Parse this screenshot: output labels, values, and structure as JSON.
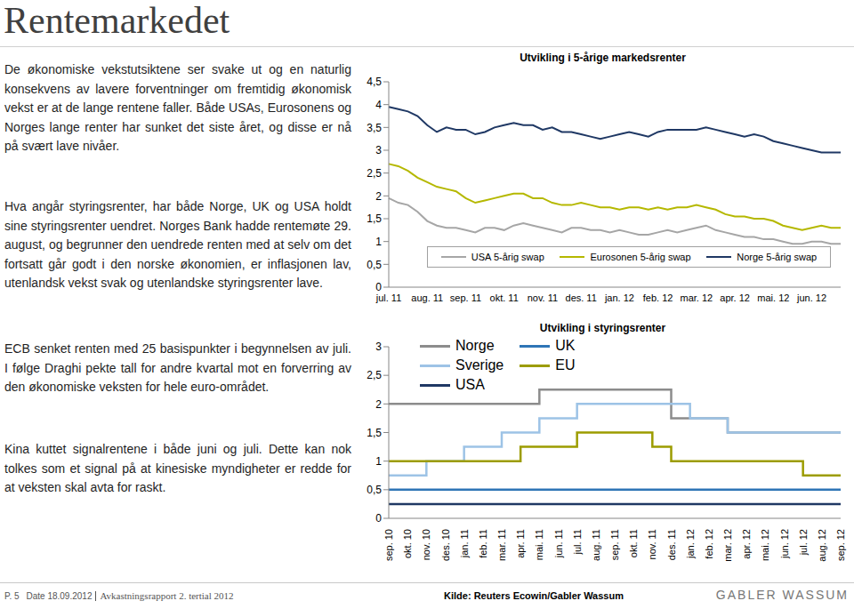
{
  "title": "Rentemarkedet",
  "paragraphs": [
    "De økonomiske vekstutsiktene ser svake ut og en naturlig konsekvens av lavere forventninger om fremtidig økonomisk vekst er at de lange rentene faller. Både USAs, Eurosonens og Norges lange renter har sunket det siste året, og disse er nå på svært lave nivåer.",
    "Hva angår styringsrenter, har både Norge, UK og USA holdt sine styringsrenter uendret. Norges Bank hadde rentemøte 29. august, og begrunner den uendrede renten med at selv om det fortsatt går godt i den norske økonomien, er inflasjonen lav, utenlandsk vekst svak og utenlandske styringsrenter lave.",
    "ECB senket renten med 25 basispunkter i begynnelsen av juli. I følge Draghi pekte tall for andre kvartal mot en forverring av den økonomiske veksten for hele euro-området.",
    "Kina kuttet signalrentene i både juni og juli. Dette kan nok tolkes som et signal på at kinesiske myndigheter er redde for at veksten skal avta for raskt."
  ],
  "chart_data": [
    {
      "type": "line",
      "title": "Utvikling i 5-årige markedsrenter",
      "categories": [
        "jul. 11",
        null,
        null,
        null,
        "aug. 11",
        null,
        null,
        null,
        "sep. 11",
        null,
        null,
        null,
        "okt. 11",
        null,
        null,
        null,
        "nov. 11",
        null,
        null,
        null,
        "des. 11",
        null,
        null,
        null,
        "jan. 12",
        null,
        null,
        null,
        "feb. 12",
        null,
        null,
        null,
        "mar. 12",
        null,
        null,
        null,
        "apr. 12",
        null,
        null,
        null,
        "mai. 12",
        null,
        null,
        null,
        "jun. 12",
        null,
        null,
        null
      ],
      "series": [
        {
          "name": "USA 5-årig swap",
          "color": "#a6a6a6",
          "values": [
            1.95,
            1.85,
            1.8,
            1.65,
            1.45,
            1.35,
            1.3,
            1.3,
            1.25,
            1.2,
            1.3,
            1.3,
            1.25,
            1.35,
            1.4,
            1.35,
            1.3,
            1.25,
            1.2,
            1.3,
            1.3,
            1.25,
            1.25,
            1.2,
            1.25,
            1.2,
            1.15,
            1.15,
            1.2,
            1.25,
            1.2,
            1.25,
            1.3,
            1.35,
            1.25,
            1.2,
            1.15,
            1.1,
            1.1,
            1.05,
            1.05,
            1.0,
            0.95,
            0.95,
            1.0,
            1.0,
            0.95,
            0.95
          ]
        },
        {
          "name": "Eurosonen 5-årig swap",
          "color": "#b5b800",
          "values": [
            2.7,
            2.65,
            2.55,
            2.4,
            2.3,
            2.2,
            2.15,
            2.1,
            1.95,
            1.85,
            1.9,
            1.95,
            2.0,
            2.05,
            2.05,
            1.95,
            1.95,
            1.85,
            1.8,
            1.8,
            1.85,
            1.8,
            1.75,
            1.75,
            1.7,
            1.75,
            1.75,
            1.7,
            1.75,
            1.7,
            1.75,
            1.75,
            1.8,
            1.75,
            1.7,
            1.6,
            1.55,
            1.55,
            1.5,
            1.5,
            1.45,
            1.35,
            1.3,
            1.25,
            1.3,
            1.35,
            1.3,
            1.3
          ]
        },
        {
          "name": "Norge 5-årig swap",
          "color": "#1f3864",
          "values": [
            3.95,
            3.9,
            3.85,
            3.75,
            3.55,
            3.4,
            3.5,
            3.45,
            3.45,
            3.35,
            3.4,
            3.5,
            3.55,
            3.6,
            3.55,
            3.55,
            3.45,
            3.5,
            3.4,
            3.4,
            3.35,
            3.3,
            3.25,
            3.3,
            3.35,
            3.4,
            3.35,
            3.3,
            3.4,
            3.45,
            3.45,
            3.45,
            3.45,
            3.5,
            3.45,
            3.4,
            3.35,
            3.3,
            3.35,
            3.3,
            3.2,
            3.15,
            3.1,
            3.05,
            3.0,
            2.95,
            2.95,
            2.95
          ]
        }
      ],
      "ylim": [
        0,
        4.5
      ],
      "yticks": [
        0,
        {
          "value": 0.5,
          "label": "0,5"
        },
        1,
        {
          "value": 1.5,
          "label": "1,5"
        },
        2,
        {
          "value": 2.5,
          "label": "2,5"
        },
        3,
        {
          "value": 3.5,
          "label": "3,5"
        },
        4,
        {
          "value": 4.5,
          "label": "4,5"
        }
      ],
      "grid": false,
      "legend": "bottom"
    },
    {
      "type": "line",
      "line_style": "step",
      "title": "Utvikling i styringsrenter",
      "categories": [
        "sep. 10",
        "okt. 10",
        "nov. 10",
        "des. 10",
        "jan. 11",
        "feb. 11",
        "mar. 11",
        "apr. 11",
        "mai. 11",
        "jun. 11",
        "jul. 11",
        "aug. 11",
        "sep. 11",
        "okt. 11",
        "nov. 11",
        "des. 11",
        "jan. 12",
        "feb. 12",
        "mar. 12",
        "apr. 12",
        "mai. 12",
        "jun. 12",
        "jul. 12",
        "aug. 12",
        "sep. 12"
      ],
      "series": [
        {
          "name": "Norge",
          "color": "#8c8c8c",
          "values": [
            2,
            2,
            2,
            2,
            2,
            2,
            2,
            2,
            2.25,
            2.25,
            2.25,
            2.25,
            2.25,
            2.25,
            2.25,
            1.75,
            1.75,
            1.75,
            1.5,
            1.5,
            1.5,
            1.5,
            1.5,
            1.5,
            1.5
          ]
        },
        {
          "name": "Sverige",
          "color": "#9dc3e6",
          "values": [
            0.75,
            0.75,
            1,
            1,
            1.25,
            1.25,
            1.5,
            1.5,
            1.75,
            1.75,
            2,
            2,
            2,
            2,
            2,
            2,
            1.75,
            1.75,
            1.5,
            1.5,
            1.5,
            1.5,
            1.5,
            1.5,
            1.5
          ]
        },
        {
          "name": "USA",
          "color": "#1f3864",
          "values": [
            0.25,
            0.25,
            0.25,
            0.25,
            0.25,
            0.25,
            0.25,
            0.25,
            0.25,
            0.25,
            0.25,
            0.25,
            0.25,
            0.25,
            0.25,
            0.25,
            0.25,
            0.25,
            0.25,
            0.25,
            0.25,
            0.25,
            0.25,
            0.25,
            0.25
          ]
        },
        {
          "name": "UK",
          "color": "#2e75b6",
          "values": [
            0.5,
            0.5,
            0.5,
            0.5,
            0.5,
            0.5,
            0.5,
            0.5,
            0.5,
            0.5,
            0.5,
            0.5,
            0.5,
            0.5,
            0.5,
            0.5,
            0.5,
            0.5,
            0.5,
            0.5,
            0.5,
            0.5,
            0.5,
            0.5,
            0.5
          ]
        },
        {
          "name": "EU",
          "color": "#9c9c00",
          "values": [
            1,
            1,
            1,
            1,
            1,
            1,
            1,
            1.25,
            1.25,
            1.25,
            1.5,
            1.5,
            1.5,
            1.5,
            1.25,
            1,
            1,
            1,
            1,
            1,
            1,
            1,
            0.75,
            0.75,
            0.75
          ]
        }
      ],
      "ylim": [
        0,
        3
      ],
      "yticks": [
        0,
        {
          "value": 0.5,
          "label": "0,5"
        },
        1,
        {
          "value": 1.5,
          "label": "1,5"
        },
        2,
        {
          "value": 2.5,
          "label": "2,5"
        },
        3
      ],
      "grid": false,
      "legend": "top left"
    }
  ],
  "footer": {
    "page": "P. 5",
    "date": "Date 18.09.2012",
    "report": "Avkastningsrapport 2. tertial 2012",
    "source": "Kilde: Reuters Ecowin/Gabler Wassum",
    "logo": "GABLER WASSUM"
  }
}
